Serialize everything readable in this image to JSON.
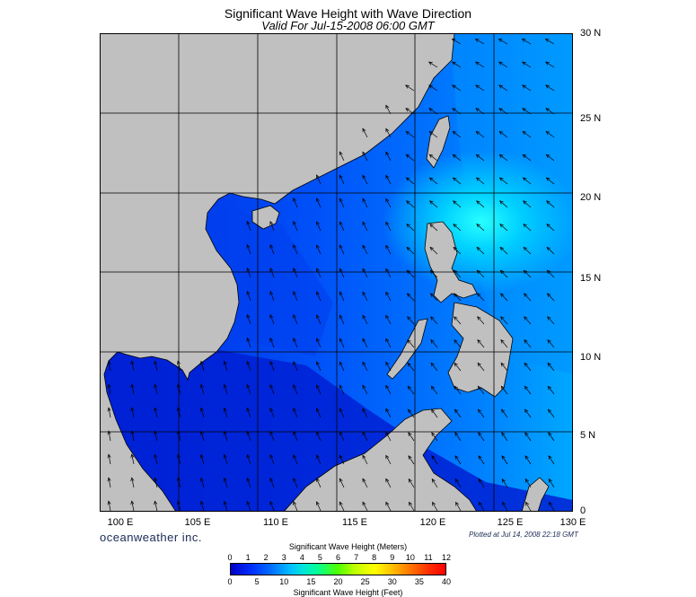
{
  "title": "Significant Wave Height with Wave Direction",
  "subtitle": "Valid For Jul-15-2008 06:00 GMT",
  "lat_labels": [
    "30 N",
    "25 N",
    "20 N",
    "15 N",
    "10 N",
    "5 N",
    "0"
  ],
  "lon_labels": [
    "100 E",
    "105 E",
    "110 E",
    "115 E",
    "120 E",
    "125 E",
    "130 E"
  ],
  "brand": "oceanweather inc.",
  "plotted": "Plotted at Jul 14, 2008 22:18 GMT",
  "colorbar": {
    "title_meters": "Significant Wave Height (Meters)",
    "title_feet": "Significant Wave Height (Feet)",
    "meter_ticks": [
      "0",
      "1",
      "2",
      "3",
      "4",
      "5",
      "6",
      "7",
      "8",
      "9",
      "10",
      "11",
      "12"
    ],
    "feet_ticks": [
      "0",
      "5",
      "10",
      "15",
      "20",
      "25",
      "30",
      "35",
      "40"
    ]
  },
  "colors": {
    "land": "#c0c0c0",
    "ocean_deep": "#0018d8",
    "ocean_mid": "#0055ff",
    "ocean_high": "#00e8ff",
    "grid": "#000000"
  }
}
